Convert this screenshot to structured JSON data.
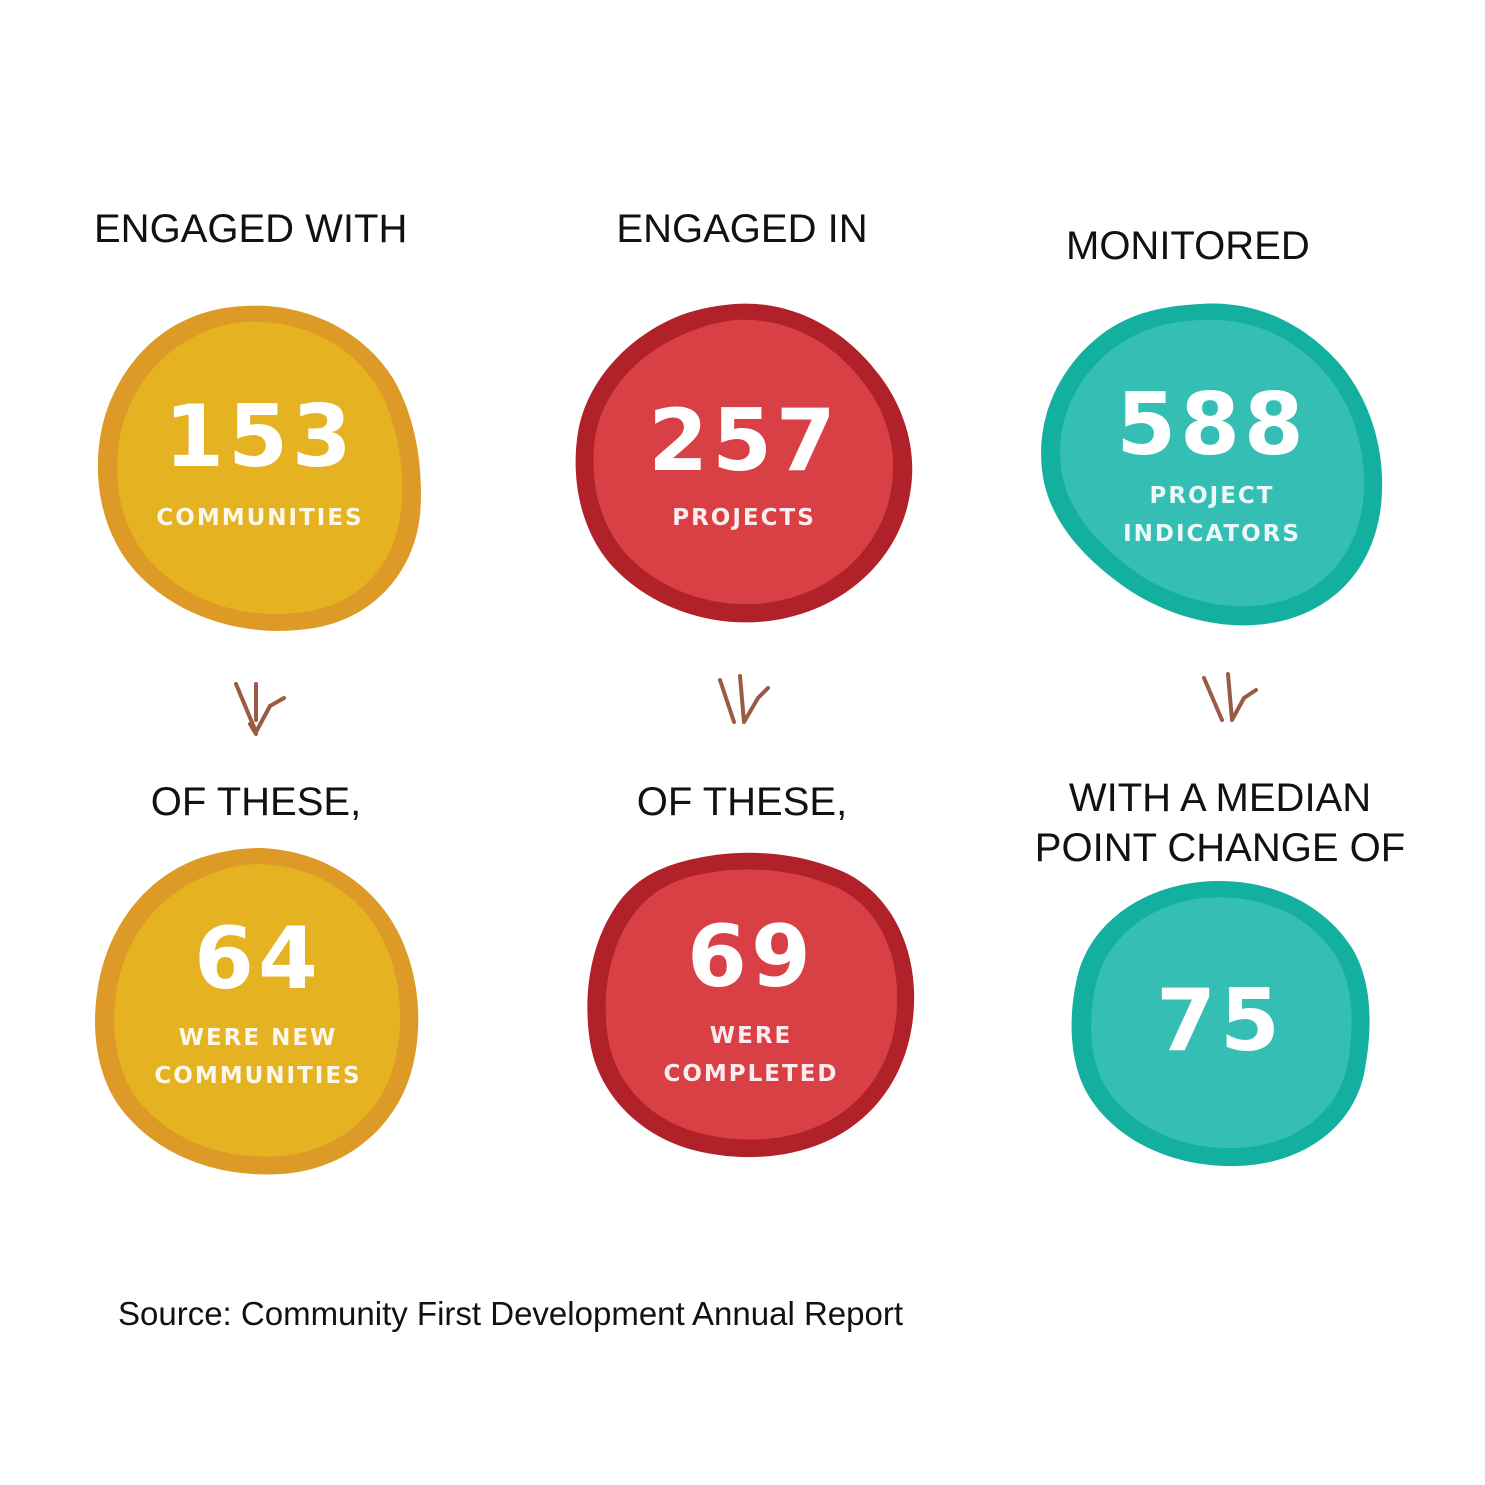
{
  "colors": {
    "yellow_fill": "#e5b222",
    "yellow_border": "#dd9a26",
    "red_fill": "#d94046",
    "red_border": "#b0212a",
    "teal_fill": "#35beb3",
    "teal_border": "#14b09f",
    "arrow": "#9a5a44"
  },
  "columns": [
    {
      "heading": "ENGAGED WITH",
      "top_value": "153",
      "top_label": "COMMUNITIES",
      "sub_heading": "OF THESE,",
      "bottom_value": "64",
      "bottom_label_line1": "WERE NEW",
      "bottom_label_line2": "COMMUNITIES"
    },
    {
      "heading": "ENGAGED IN",
      "top_value": "257",
      "top_label": "PROJECTS",
      "sub_heading": "OF THESE,",
      "bottom_value": "69",
      "bottom_label_line1": "WERE",
      "bottom_label_line2": "COMPLETED"
    },
    {
      "heading": "MONITORED",
      "top_value": "588",
      "top_label_line1": "PROJECT",
      "top_label_line2": "INDICATORS",
      "sub_heading_line1": "WITH A MEDIAN",
      "sub_heading_line2": "POINT CHANGE OF",
      "bottom_value": "75"
    }
  ],
  "source": "Source: Community First Development Annual Report"
}
